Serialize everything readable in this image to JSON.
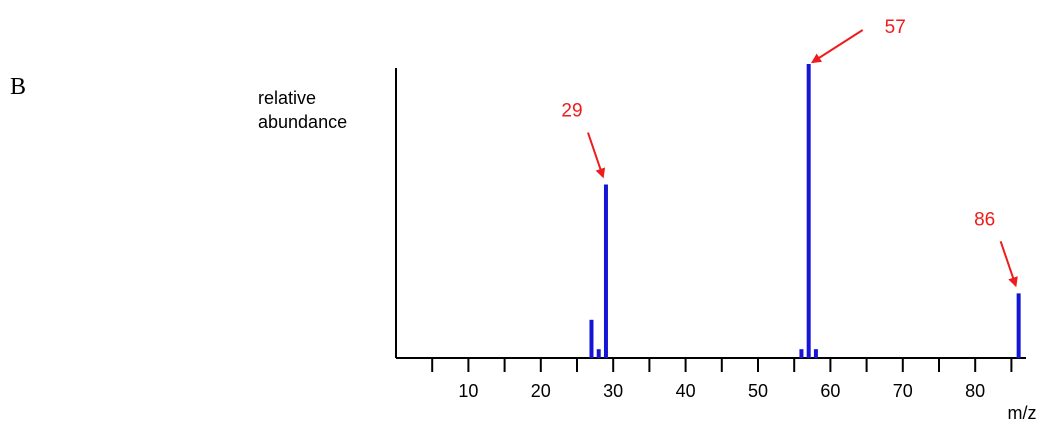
{
  "panel_label": "B",
  "chart_data": {
    "type": "bar",
    "xlabel": "m/z",
    "ylabel_lines": [
      "relative",
      "abundance"
    ],
    "xlim": [
      0,
      86
    ],
    "ylim": [
      0,
      100
    ],
    "x_ticks": [
      5,
      10,
      15,
      20,
      25,
      30,
      35,
      40,
      45,
      50,
      55,
      60,
      65,
      70,
      75,
      80,
      85
    ],
    "x_tick_labels": [
      {
        "value": 10,
        "label": "10"
      },
      {
        "value": 20,
        "label": "20"
      },
      {
        "value": 30,
        "label": "30"
      },
      {
        "value": 40,
        "label": "40"
      },
      {
        "value": 50,
        "label": "50"
      },
      {
        "value": 60,
        "label": "60"
      },
      {
        "value": 70,
        "label": "70"
      },
      {
        "value": 80,
        "label": "80"
      }
    ],
    "peaks": [
      {
        "mz": 27,
        "abundance": 13
      },
      {
        "mz": 28,
        "abundance": 3
      },
      {
        "mz": 29,
        "abundance": 59
      },
      {
        "mz": 56,
        "abundance": 3
      },
      {
        "mz": 57,
        "abundance": 100
      },
      {
        "mz": 58,
        "abundance": 3
      },
      {
        "mz": 86,
        "abundance": 22
      }
    ],
    "annotations": [
      {
        "mz": 29,
        "label": "29",
        "direction": "above-left"
      },
      {
        "mz": 57,
        "label": "57",
        "direction": "upper-right"
      },
      {
        "mz": 86,
        "label": "86",
        "direction": "above-left"
      }
    ],
    "colors": {
      "bars": "#1515d6",
      "annotations": "#ee1c1c",
      "axis": "#000000"
    }
  }
}
